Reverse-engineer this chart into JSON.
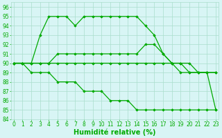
{
  "line1_x": [
    0,
    1,
    2,
    3,
    4,
    5,
    6,
    7,
    8,
    9,
    10,
    11,
    12,
    13,
    14,
    15,
    16,
    17,
    18,
    19,
    20,
    21,
    22,
    23
  ],
  "line1_y": [
    90,
    90,
    90,
    93,
    95,
    95,
    95,
    94,
    95,
    95,
    95,
    95,
    95,
    95,
    95,
    94,
    93,
    91,
    90,
    89,
    89,
    89,
    89,
    85
  ],
  "line2_x": [
    0,
    1,
    2,
    3,
    4,
    5,
    6,
    7,
    8,
    9,
    10,
    11,
    12,
    13,
    14,
    15,
    16,
    17,
    18,
    19,
    20,
    21,
    22,
    23
  ],
  "line2_y": [
    90,
    90,
    90,
    90,
    90,
    91,
    91,
    91,
    91,
    91,
    91,
    91,
    91,
    91,
    91,
    92,
    92,
    91,
    90,
    90,
    89,
    89,
    89,
    89
  ],
  "line3_x": [
    0,
    1,
    2,
    3,
    4,
    5,
    6,
    7,
    8,
    9,
    10,
    11,
    12,
    13,
    14,
    15,
    16,
    17,
    18,
    19,
    20,
    21,
    22,
    23
  ],
  "line3_y": [
    90,
    90,
    90,
    90,
    90,
    90,
    90,
    90,
    90,
    90,
    90,
    90,
    90,
    90,
    90,
    90,
    90,
    90,
    90,
    90,
    90,
    89,
    89,
    89
  ],
  "line4_x": [
    0,
    1,
    2,
    3,
    4,
    5,
    6,
    7,
    8,
    9,
    10,
    11,
    12,
    13,
    14,
    15,
    16,
    17,
    18,
    19,
    20,
    21,
    22,
    23
  ],
  "line4_y": [
    90,
    90,
    89,
    89,
    89,
    88,
    88,
    88,
    87,
    87,
    87,
    86,
    86,
    86,
    85,
    85,
    85,
    85,
    85,
    85,
    85,
    85,
    85,
    85
  ],
  "line_color": "#00aa00",
  "marker": "D",
  "marker_size": 1.8,
  "line_width": 0.9,
  "xlabel": "Humidité relative (%)",
  "xlim": [
    0,
    23
  ],
  "ylim": [
    84,
    96.5
  ],
  "yticks": [
    84,
    85,
    86,
    87,
    88,
    89,
    90,
    91,
    92,
    93,
    94,
    95,
    96
  ],
  "xticks": [
    0,
    1,
    2,
    3,
    4,
    5,
    6,
    7,
    8,
    9,
    10,
    11,
    12,
    13,
    14,
    15,
    16,
    17,
    18,
    19,
    20,
    21,
    22,
    23
  ],
  "background_color": "#d8f5f5",
  "grid_color": "#aaddcc",
  "tick_color": "#00aa00",
  "xlabel_color": "#00aa00",
  "xlabel_fontsize": 7,
  "tick_fontsize": 5.5
}
